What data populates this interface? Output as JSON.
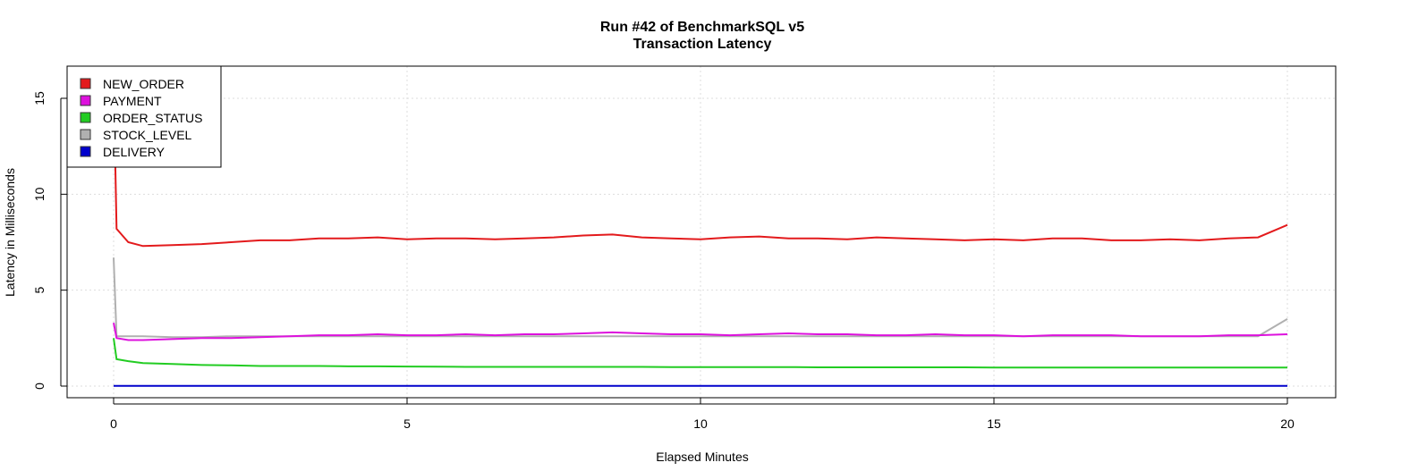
{
  "chart_data": {
    "type": "line",
    "title": "Run #42 of BenchmarkSQL v5",
    "subtitle": "Transaction Latency",
    "xlabel": "Elapsed Minutes",
    "ylabel": "Latency in Milliseconds",
    "xlim": [
      -0.8,
      20.8
    ],
    "ylim": [
      -0.6,
      16.7
    ],
    "xticks": [
      0,
      5,
      10,
      15,
      20
    ],
    "yticks": [
      0,
      5,
      10,
      15
    ],
    "grid": true,
    "legend_position": "top-left",
    "x": [
      0,
      0.05,
      0.25,
      0.5,
      1,
      1.5,
      2,
      2.5,
      3,
      3.5,
      4,
      4.5,
      5,
      5.5,
      6,
      6.5,
      7,
      7.5,
      8,
      8.5,
      9,
      9.5,
      10,
      10.5,
      11,
      11.5,
      12,
      12.5,
      13,
      13.5,
      14,
      14.5,
      15,
      15.5,
      16,
      16.5,
      17,
      17.5,
      18,
      18.5,
      19,
      19.5,
      20
    ],
    "series": [
      {
        "name": "NEW_ORDER",
        "color": "#e31a1c",
        "values": [
          16,
          8.2,
          7.5,
          7.3,
          7.35,
          7.4,
          7.5,
          7.6,
          7.6,
          7.7,
          7.7,
          7.75,
          7.65,
          7.7,
          7.7,
          7.65,
          7.7,
          7.75,
          7.85,
          7.9,
          7.75,
          7.7,
          7.65,
          7.75,
          7.8,
          7.7,
          7.7,
          7.65,
          7.75,
          7.7,
          7.65,
          7.6,
          7.65,
          7.6,
          7.7,
          7.7,
          7.6,
          7.6,
          7.65,
          7.6,
          7.7,
          7.75,
          8.4
        ]
      },
      {
        "name": "PAYMENT",
        "color": "#dd11dd",
        "values": [
          3.3,
          2.5,
          2.4,
          2.4,
          2.45,
          2.5,
          2.5,
          2.55,
          2.6,
          2.65,
          2.65,
          2.7,
          2.65,
          2.65,
          2.7,
          2.65,
          2.7,
          2.7,
          2.75,
          2.8,
          2.75,
          2.7,
          2.7,
          2.65,
          2.7,
          2.75,
          2.7,
          2.7,
          2.65,
          2.65,
          2.7,
          2.65,
          2.65,
          2.6,
          2.65,
          2.65,
          2.65,
          2.6,
          2.6,
          2.6,
          2.65,
          2.65,
          2.7
        ]
      },
      {
        "name": "ORDER_STATUS",
        "color": "#22cc22",
        "values": [
          2.5,
          1.4,
          1.3,
          1.2,
          1.15,
          1.1,
          1.08,
          1.05,
          1.05,
          1.05,
          1.03,
          1.03,
          1.02,
          1.01,
          1.0,
          1.0,
          1.0,
          1.0,
          1.0,
          1.0,
          1.0,
          0.99,
          0.99,
          0.99,
          0.99,
          0.99,
          0.98,
          0.98,
          0.98,
          0.98,
          0.98,
          0.98,
          0.97,
          0.97,
          0.97,
          0.97,
          0.97,
          0.97,
          0.97,
          0.97,
          0.97,
          0.97,
          0.97
        ]
      },
      {
        "name": "STOCK_LEVEL",
        "color": "#b0b0b0",
        "values": [
          6.7,
          2.6,
          2.6,
          2.6,
          2.55,
          2.55,
          2.6,
          2.6,
          2.6,
          2.6,
          2.6,
          2.6,
          2.6,
          2.6,
          2.6,
          2.6,
          2.6,
          2.6,
          2.6,
          2.6,
          2.6,
          2.6,
          2.6,
          2.6,
          2.6,
          2.6,
          2.6,
          2.6,
          2.6,
          2.6,
          2.6,
          2.6,
          2.6,
          2.6,
          2.6,
          2.6,
          2.6,
          2.6,
          2.6,
          2.6,
          2.6,
          2.6,
          3.5
        ]
      },
      {
        "name": "DELIVERY",
        "color": "#0000cc",
        "values": [
          0.01,
          0.01,
          0.01,
          0.01,
          0.01,
          0.01,
          0.01,
          0.01,
          0.01,
          0.01,
          0.01,
          0.01,
          0.01,
          0.01,
          0.01,
          0.01,
          0.01,
          0.01,
          0.01,
          0.01,
          0.01,
          0.01,
          0.01,
          0.01,
          0.01,
          0.01,
          0.01,
          0.01,
          0.01,
          0.01,
          0.01,
          0.01,
          0.01,
          0.01,
          0.01,
          0.01,
          0.01,
          0.01,
          0.01,
          0.01,
          0.01,
          0.01,
          0.01
        ]
      }
    ]
  }
}
